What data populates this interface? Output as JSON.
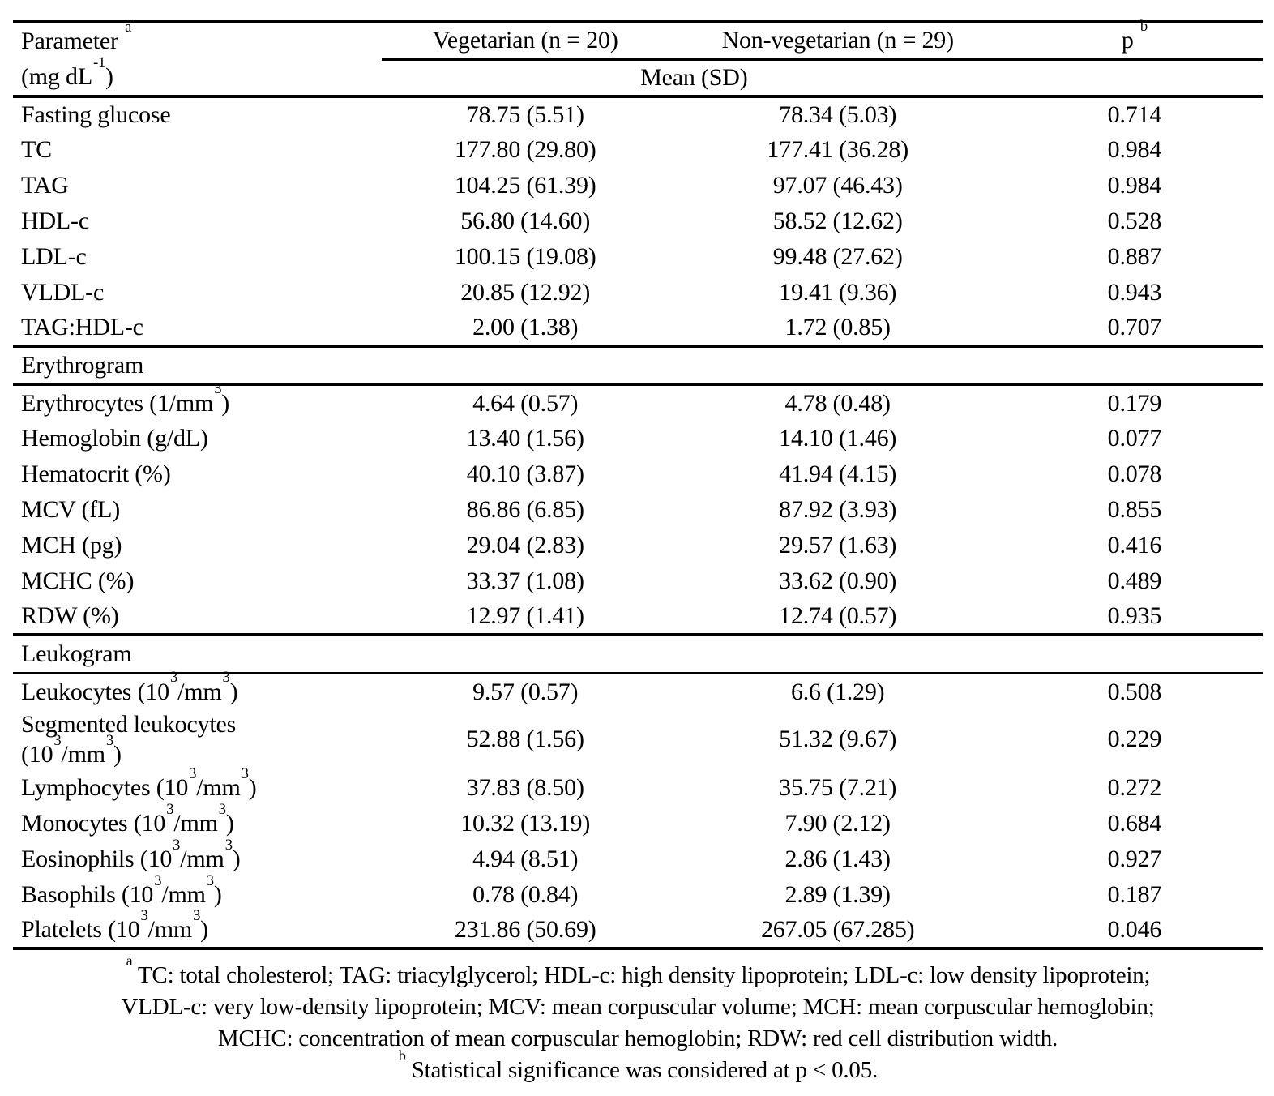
{
  "table": {
    "header": {
      "parameter": "Parameter ^{a}",
      "unit": "(mg dL^{-1})",
      "vegetarian": "Vegetarian (n = 20)",
      "nonvegetarian": "Non-vegetarian (n = 29)",
      "p": "p ^{b}",
      "subheader": "Mean (SD)"
    },
    "sections": [
      {
        "title": null,
        "rows": [
          [
            "Fasting glucose",
            "78.75 (5.51)",
            "78.34 (5.03)",
            "0.714"
          ],
          [
            "TC",
            "177.80 (29.80)",
            "177.41 (36.28)",
            "0.984"
          ],
          [
            "TAG",
            "104.25 (61.39)",
            "97.07 (46.43)",
            "0.984"
          ],
          [
            "HDL-c",
            "56.80 (14.60)",
            "58.52 (12.62)",
            "0.528"
          ],
          [
            "LDL-c",
            "100.15 (19.08)",
            "99.48 (27.62)",
            "0.887"
          ],
          [
            "VLDL-c",
            "20.85 (12.92)",
            "19.41 (9.36)",
            "0.943"
          ],
          [
            "TAG:HDL-c",
            "2.00 (1.38)",
            "1.72 (0.85)",
            "0.707"
          ]
        ]
      },
      {
        "title": "Erythrogram",
        "rows": [
          [
            "Erythrocytes (1/mm^{3})",
            "4.64 (0.57)",
            "4.78 (0.48)",
            "0.179"
          ],
          [
            "Hemoglobin (g/dL)",
            "13.40 (1.56)",
            "14.10 (1.46)",
            "0.077"
          ],
          [
            "Hematocrit (%)",
            "40.10 (3.87)",
            "41.94 (4.15)",
            "0.078"
          ],
          [
            "MCV (fL)",
            "86.86 (6.85)",
            "87.92 (3.93)",
            "0.855"
          ],
          [
            "MCH (pg)",
            "29.04 (2.83)",
            "29.57 (1.63)",
            "0.416"
          ],
          [
            "MCHC (%)",
            "33.37 (1.08)",
            "33.62 (0.90)",
            "0.489"
          ],
          [
            "RDW (%)",
            "12.97 (1.41)",
            "12.74 (0.57)",
            "0.935"
          ]
        ]
      },
      {
        "title": "Leukogram",
        "rows": [
          [
            "Leukocytes (10^{3}/mm^{3})",
            "9.57 (0.57)",
            "6.6 (1.29)",
            "0.508"
          ],
          [
            "Segmented leukocytes (10^{3}/mm^{3})",
            "52.88 (1.56)",
            "51.32 (9.67)",
            "0.229"
          ],
          [
            "Lymphocytes (10^{3}/mm^{3})",
            "37.83 (8.50)",
            "35.75 (7.21)",
            "0.272"
          ],
          [
            "Monocytes (10^{3}/mm^{3})",
            "10.32 (13.19)",
            "7.90 (2.12)",
            "0.684"
          ],
          [
            "Eosinophils (10^{3}/mm^{3})",
            "4.94 (8.51)",
            "2.86 (1.43)",
            "0.927"
          ],
          [
            "Basophils (10^{3}/mm^{3})",
            "0.78 (0.84)",
            "2.89 (1.39)",
            "0.187"
          ],
          [
            "Platelets (10^{3}/mm^{3})",
            "231.86 (50.69)",
            "267.05 (67.285)",
            "0.046"
          ]
        ]
      }
    ],
    "footnotes": [
      "^{a} TC: total cholesterol; TAG: triacylglycerol; HDL-c: high density lipoprotein; LDL-c: low density lipoprotein;",
      "VLDL-c: very low-density lipoprotein; MCV: mean corpuscular volume; MCH: mean corpuscular hemoglobin;",
      "MCHC: concentration of mean corpuscular hemoglobin; RDW: red cell distribution width.",
      "^{b} Statistical significance was considered at p < 0.05."
    ]
  }
}
